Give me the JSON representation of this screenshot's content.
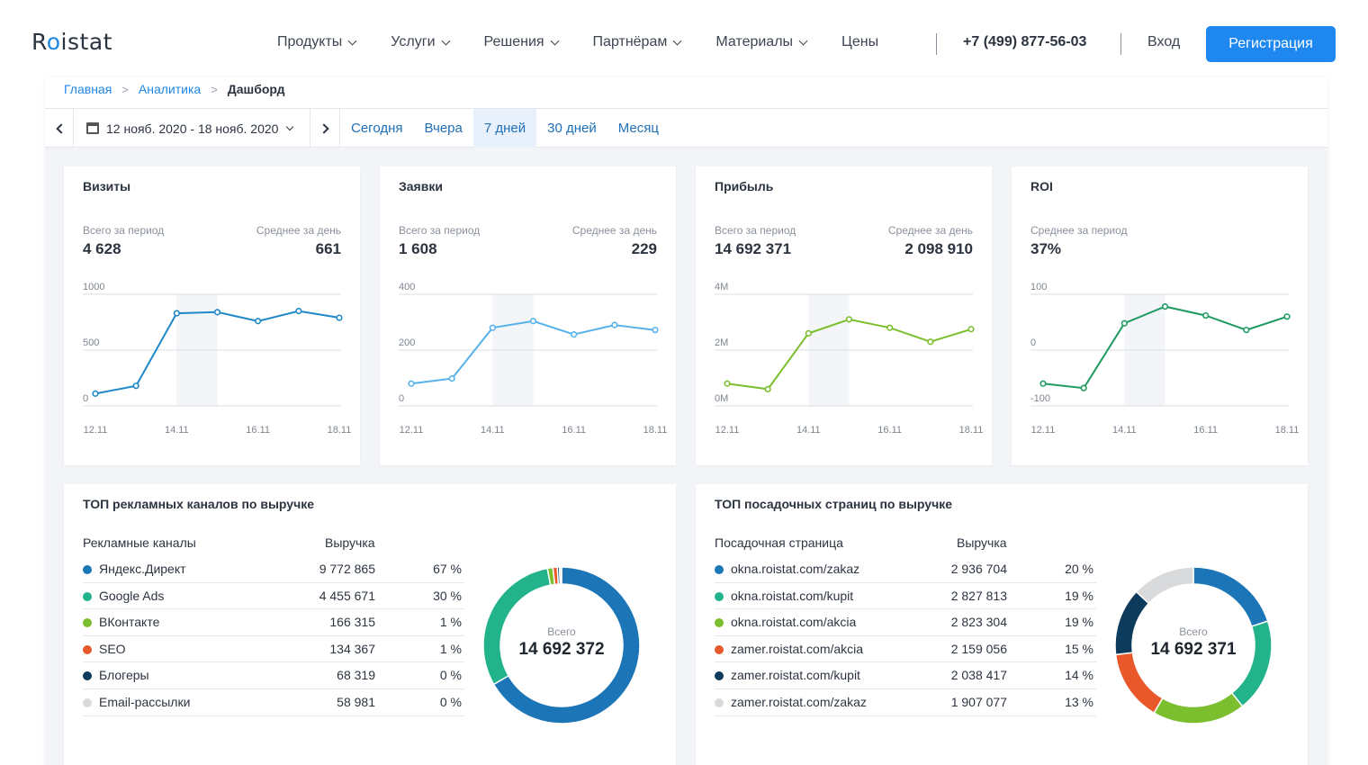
{
  "header": {
    "logo_pre": "R",
    "logo_dot": "o",
    "logo_post": "istat",
    "nav": [
      {
        "label": "Продукты",
        "dropdown": true
      },
      {
        "label": "Услуги",
        "dropdown": true
      },
      {
        "label": "Решения",
        "dropdown": true
      },
      {
        "label": "Партнёрам",
        "dropdown": true
      },
      {
        "label": "Материалы",
        "dropdown": true
      },
      {
        "label": "Цены",
        "dropdown": false
      }
    ],
    "phone": "+7 (499) 877-56-03",
    "login": "Вход",
    "register": "Регистрация"
  },
  "breadcrumbs": {
    "home": "Главная",
    "analytics": "Аналитика",
    "current": "Дашборд"
  },
  "datebar": {
    "range": "12 нояб. 2020 - 18 нояб. 2020",
    "periods": [
      "Сегодня",
      "Вчера",
      "7 дней",
      "30 дней",
      "Месяц"
    ],
    "active_period": "7 дней"
  },
  "kpis": [
    {
      "title": "Визиты",
      "left_label": "Всего за период",
      "left_value": "4 628",
      "right_label": "Среднее за день",
      "right_value": "661",
      "color": "#1e88c8",
      "chart_data": {
        "type": "line",
        "x": [
          "12.11",
          "13.11",
          "14.11",
          "15.11",
          "16.11",
          "17.11",
          "18.11"
        ],
        "x_ticks": [
          "12.11",
          "14.11",
          "16.11",
          "18.11"
        ],
        "y_ticks": [
          "1000",
          "500",
          "0"
        ],
        "ylim": [
          0,
          1000
        ],
        "values": [
          110,
          180,
          830,
          840,
          760,
          850,
          790
        ],
        "highlight": [
          "14.11",
          "15.11"
        ]
      }
    },
    {
      "title": "Заявки",
      "left_label": "Всего за период",
      "left_value": "1 608",
      "right_label": "Среднее за день",
      "right_value": "229",
      "color": "#58b2ea",
      "chart_data": {
        "type": "line",
        "x": [
          "12.11",
          "13.11",
          "14.11",
          "15.11",
          "16.11",
          "17.11",
          "18.11"
        ],
        "x_ticks": [
          "12.11",
          "14.11",
          "16.11",
          "18.11"
        ],
        "y_ticks": [
          "400",
          "200",
          "0"
        ],
        "ylim": [
          0,
          400
        ],
        "values": [
          80,
          98,
          280,
          304,
          256,
          290,
          272
        ],
        "highlight": [
          "14.11",
          "15.11"
        ]
      }
    },
    {
      "title": "Прибыль",
      "left_label": "Всего за период",
      "left_value": "14 692 371",
      "right_label": "Среднее за день",
      "right_value": "2 098 910",
      "color": "#7cbf2e",
      "chart_data": {
        "type": "line",
        "x": [
          "12.11",
          "13.11",
          "14.11",
          "15.11",
          "16.11",
          "17.11",
          "18.11"
        ],
        "x_ticks": [
          "12.11",
          "14.11",
          "16.11",
          "18.11"
        ],
        "y_ticks": [
          "4M",
          "2M",
          "0M"
        ],
        "ylim": [
          0,
          4
        ],
        "values": [
          0.8,
          0.6,
          2.6,
          3.1,
          2.8,
          2.3,
          2.75
        ],
        "highlight": [
          "14.11",
          "15.11"
        ]
      }
    },
    {
      "title": "ROI",
      "left_label": "Среднее за период",
      "left_value": "37%",
      "right_label": "",
      "right_value": "",
      "color": "#1e9a60",
      "chart_data": {
        "type": "line",
        "x": [
          "12.11",
          "13.11",
          "14.11",
          "15.11",
          "16.11",
          "17.11",
          "18.11"
        ],
        "x_ticks": [
          "12.11",
          "14.11",
          "16.11",
          "18.11"
        ],
        "y_ticks": [
          "100",
          "0",
          "-100"
        ],
        "ylim": [
          -100,
          100
        ],
        "values": [
          -60,
          -68,
          48,
          78,
          62,
          36,
          60
        ],
        "highlight": [
          "14.11",
          "15.11"
        ]
      }
    }
  ],
  "channels": {
    "title": "ТОП рекламных каналов по выручке",
    "col_name": "Рекламные каналы",
    "col_value": "Выручка",
    "donut_label": "Всего",
    "donut_total": "14 692 372",
    "rows": [
      {
        "name": "Яндекс.Директ",
        "value": "9 772 865",
        "pct": "67 %",
        "share": 66.5,
        "color": "#1b75b6"
      },
      {
        "name": "Google Ads",
        "value": "4 455 671",
        "pct": "30 %",
        "share": 30.3,
        "color": "#22b38a"
      },
      {
        "name": "ВКонтакте",
        "value": "166 315",
        "pct": "1 %",
        "share": 1.13,
        "color": "#7cbf2e"
      },
      {
        "name": "SEO",
        "value": "134 367",
        "pct": "1 %",
        "share": 0.91,
        "color": "#e8582b"
      },
      {
        "name": "Блогеры",
        "value": "68 319",
        "pct": "0 %",
        "share": 0.46,
        "color": "#0d3b5c"
      },
      {
        "name": "Email-рассылки",
        "value": "58 981",
        "pct": "0 %",
        "share": 0.4,
        "color": "#d9dadc"
      }
    ]
  },
  "pages": {
    "title": "ТОП посадочных страниц по выручке",
    "col_name": "Посадочная страница",
    "col_value": "Выручка",
    "donut_label": "Всего",
    "donut_total": "14 692 371",
    "rows": [
      {
        "name": "okna.roistat.com/zakaz",
        "value": "2 936 704",
        "pct": "20 %",
        "share": 20.0,
        "color": "#1b75b6"
      },
      {
        "name": "okna.roistat.com/kupit",
        "value": "2 827 813",
        "pct": "19 %",
        "share": 19.2,
        "color": "#22b38a"
      },
      {
        "name": "okna.roistat.com/akcia",
        "value": "2 823 304",
        "pct": "19 %",
        "share": 19.2,
        "color": "#7cbf2e"
      },
      {
        "name": "zamer.roistat.com/akcia",
        "value": "2 159 056",
        "pct": "15 %",
        "share": 14.7,
        "color": "#e8582b"
      },
      {
        "name": "zamer.roistat.com/kupit",
        "value": "2 038 417",
        "pct": "14 %",
        "share": 13.9,
        "color": "#0d3b5c"
      },
      {
        "name": "zamer.roistat.com/zakaz",
        "value": "1 907 077",
        "pct": "13 %",
        "share": 13.0,
        "color": "#d9dadc"
      }
    ]
  }
}
